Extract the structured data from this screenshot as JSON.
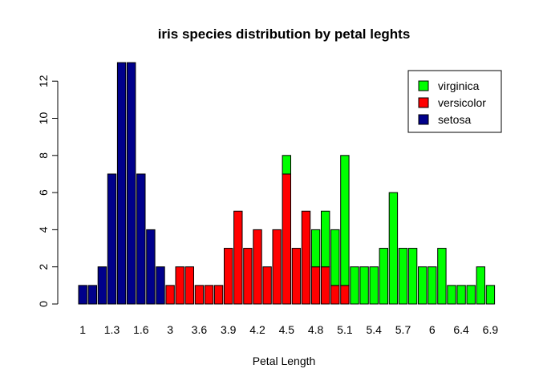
{
  "chart_data": {
    "type": "bar",
    "stacked": true,
    "title": "iris species distribution by petal leghts",
    "xlabel": "Petal Length",
    "ylabel": "",
    "ylim": [
      0,
      13
    ],
    "yticks": [
      0,
      2,
      4,
      6,
      8,
      10,
      12
    ],
    "legend_position": "top-right",
    "categories": [
      "1",
      "1.1",
      "1.2",
      "1.3",
      "1.4",
      "1.5",
      "1.6",
      "1.7",
      "1.9",
      "3",
      "3.3",
      "3.5",
      "3.6",
      "3.7",
      "3.8",
      "3.9",
      "4",
      "4.1",
      "4.2",
      "4.3",
      "4.4",
      "4.5",
      "4.6",
      "4.7",
      "4.8",
      "4.9",
      "5",
      "5.1",
      "5.2",
      "5.3",
      "5.4",
      "5.5",
      "5.6",
      "5.7",
      "5.8",
      "5.9",
      "6",
      "6.1",
      "6.3",
      "6.4",
      "6.6",
      "6.7",
      "6.9"
    ],
    "xtick_labels": [
      "1",
      "1.3",
      "1.6",
      "3",
      "3.6",
      "3.9",
      "4.2",
      "4.5",
      "4.8",
      "5.1",
      "5.4",
      "5.7",
      "6",
      "6.4",
      "6.9"
    ],
    "series": [
      {
        "name": "setosa",
        "color": "#00008B",
        "values": [
          1,
          1,
          2,
          7,
          13,
          13,
          7,
          4,
          2,
          0,
          0,
          0,
          0,
          0,
          0,
          0,
          0,
          0,
          0,
          0,
          0,
          0,
          0,
          0,
          0,
          0,
          0,
          0,
          0,
          0,
          0,
          0,
          0,
          0,
          0,
          0,
          0,
          0,
          0,
          0,
          0,
          0,
          0
        ]
      },
      {
        "name": "versicolor",
        "color": "#FF0000",
        "values": [
          0,
          0,
          0,
          0,
          0,
          0,
          0,
          0,
          0,
          1,
          2,
          2,
          1,
          1,
          1,
          3,
          5,
          3,
          4,
          2,
          4,
          7,
          3,
          5,
          2,
          2,
          1,
          1,
          0,
          0,
          0,
          0,
          0,
          0,
          0,
          0,
          0,
          0,
          0,
          0,
          0,
          0,
          0
        ]
      },
      {
        "name": "virginica",
        "color": "#00FF00",
        "values": [
          0,
          0,
          0,
          0,
          0,
          0,
          0,
          0,
          0,
          0,
          0,
          0,
          0,
          0,
          0,
          0,
          0,
          0,
          0,
          0,
          0,
          1,
          0,
          0,
          2,
          3,
          3,
          7,
          2,
          2,
          2,
          3,
          6,
          3,
          3,
          2,
          2,
          3,
          1,
          1,
          1,
          2,
          1
        ]
      }
    ],
    "legend_order": [
      "virginica",
      "versicolor",
      "setosa"
    ]
  }
}
